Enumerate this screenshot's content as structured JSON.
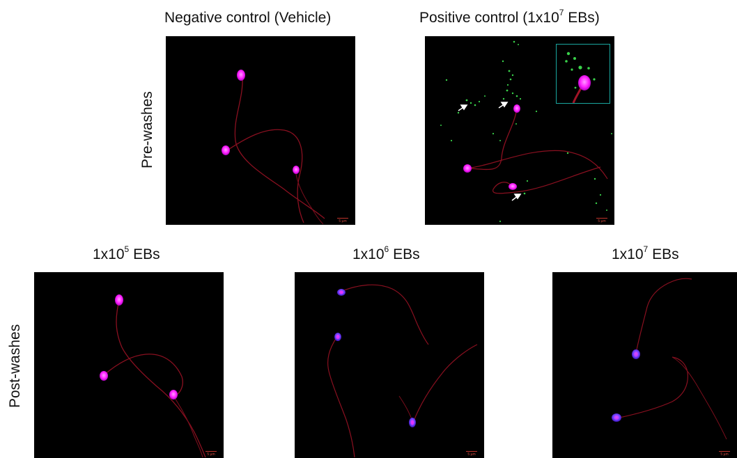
{
  "titles": {
    "negative": "Negative control (Vehicle)",
    "positive_pre": "Positive control (1x10",
    "positive_exp": "7",
    "positive_post": " EBs)",
    "p1_pre": "1x10",
    "p1_exp": "5",
    "p1_post": " EBs",
    "p2_pre": "1x10",
    "p2_exp": "6",
    "p2_post": " EBs",
    "p3_pre": "1x10",
    "p3_exp": "7",
    "p3_post": " EBs"
  },
  "row_labels": {
    "pre": "Pre-washes",
    "post": "Post-washes"
  },
  "scale_bar": "5 µm",
  "colors": {
    "head": "#ff22ff",
    "head_blue": "#6a3cff",
    "tail": "#8a1020",
    "eb": "#39d14a",
    "inset_border": "#1aa7a0",
    "background": "#000000"
  }
}
